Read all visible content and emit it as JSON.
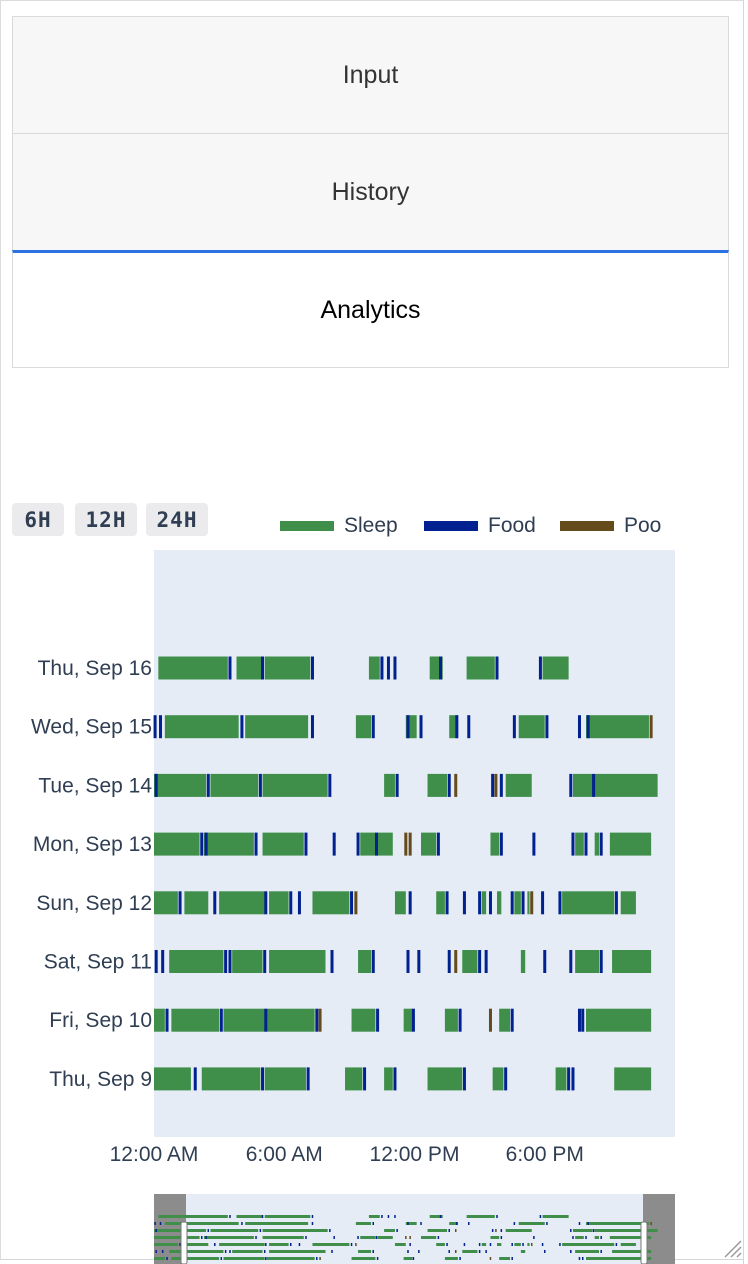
{
  "tabs": [
    {
      "label": "Input",
      "active": false
    },
    {
      "label": "History",
      "active": false
    },
    {
      "label": "Analytics",
      "active": true
    }
  ],
  "range_buttons": [
    "6H",
    "12H",
    "24H"
  ],
  "colors": {
    "sleep": "#3f8f4b",
    "food": "#00218f",
    "poo": "#654a1c",
    "plot_bg": "#e5ecf6",
    "tab_accent": "#2a72e0"
  },
  "chart_data": {
    "type": "timeline",
    "legend": [
      {
        "name": "Sleep",
        "color": "#3f8f4b"
      },
      {
        "name": "Food",
        "color": "#00218f"
      },
      {
        "name": "Poo",
        "color": "#654a1c"
      }
    ],
    "x_ticks": [
      "12:00 AM",
      "6:00 AM",
      "12:00 PM",
      "6:00 PM"
    ],
    "x_tick_hours": [
      0,
      6,
      12,
      18
    ],
    "xlim_hours": [
      0,
      24
    ],
    "days": [
      "Thu, Sep 16",
      "Wed, Sep 15",
      "Tue, Sep 14",
      "Mon, Sep 13",
      "Sun, Sep 12",
      "Sat, Sep 11",
      "Fri, Sep 10",
      "Thu, Sep 9"
    ],
    "rows": [
      {
        "day": "Thu, Sep 16",
        "sleep": [
          [
            0.2,
            3.4
          ],
          [
            3.8,
            5.0
          ],
          [
            5.1,
            7.2
          ],
          [
            9.9,
            10.4
          ],
          [
            12.7,
            13.3
          ],
          [
            14.4,
            15.7
          ],
          [
            17.9,
            19.1
          ]
        ],
        "food": [
          3.5,
          5.0,
          7.3,
          10.5,
          10.8,
          11.1,
          13.2,
          15.8,
          17.8
        ],
        "poo": []
      },
      {
        "day": "Wed, Sep 15",
        "sleep": [
          [
            0.5,
            3.9
          ],
          [
            4.2,
            7.1
          ],
          [
            9.3,
            10.0
          ],
          [
            11.6,
            12.1
          ],
          [
            13.6,
            14.0
          ],
          [
            16.8,
            18.0
          ],
          [
            19.9,
            22.8
          ]
        ],
        "food": [
          0.05,
          0.3,
          4.05,
          7.3,
          10.1,
          11.7,
          12.3,
          13.95,
          14.5,
          16.6,
          18.1,
          19.6,
          20.0
        ],
        "poo": [
          22.9
        ]
      },
      {
        "day": "Tue, Sep 14",
        "sleep": [
          [
            0.0,
            2.4
          ],
          [
            2.6,
            4.8
          ],
          [
            5.0,
            8.0
          ],
          [
            10.6,
            11.1
          ],
          [
            12.6,
            13.5
          ],
          [
            16.2,
            17.4
          ],
          [
            19.3,
            20.2
          ],
          [
            20.3,
            23.2
          ]
        ],
        "food": [
          0.1,
          2.5,
          4.9,
          8.1,
          11.2,
          13.6,
          15.6,
          16.0,
          19.2,
          20.25
        ],
        "poo": [
          13.9,
          15.75
        ]
      },
      {
        "day": "Mon, Sep 13",
        "sleep": [
          [
            0.0,
            2.1
          ],
          [
            2.3,
            4.6
          ],
          [
            5.0,
            6.9
          ],
          [
            9.5,
            10.2
          ],
          [
            10.3,
            11.0
          ],
          [
            12.3,
            13.0
          ],
          [
            15.5,
            15.9
          ],
          [
            19.4,
            19.8
          ],
          [
            20.3,
            20.5
          ],
          [
            21.0,
            22.9
          ]
        ],
        "food": [
          2.2,
          2.4,
          4.7,
          7.0,
          8.3,
          9.4,
          10.25,
          13.1,
          16.0,
          17.5,
          19.3,
          19.9,
          20.6
        ],
        "poo": [
          11.6,
          11.8
        ]
      },
      {
        "day": "Sun, Sep 12",
        "sleep": [
          [
            0.0,
            1.1
          ],
          [
            1.4,
            2.5
          ],
          [
            3.0,
            5.1
          ],
          [
            5.3,
            6.2
          ],
          [
            7.3,
            9.0
          ],
          [
            11.1,
            11.6
          ],
          [
            13.0,
            13.4
          ],
          [
            15.1,
            15.3
          ],
          [
            15.8,
            16.0
          ],
          [
            16.6,
            16.9
          ],
          [
            17.2,
            17.3
          ],
          [
            18.8,
            21.2
          ],
          [
            21.5,
            22.2
          ]
        ],
        "food": [
          1.2,
          2.8,
          5.15,
          6.3,
          6.7,
          9.1,
          11.8,
          13.5,
          14.3,
          15.0,
          15.5,
          16.5,
          17.0,
          17.9,
          18.7,
          21.3
        ],
        "poo": [
          9.3,
          17.4
        ]
      },
      {
        "day": "Sat, Sep 11",
        "sleep": [
          [
            0.7,
            3.2
          ],
          [
            3.6,
            5.0
          ],
          [
            5.3,
            7.9
          ],
          [
            9.4,
            10.0
          ],
          [
            14.2,
            14.9
          ],
          [
            16.9,
            17.1
          ],
          [
            19.4,
            20.5
          ],
          [
            21.1,
            22.9
          ]
        ],
        "food": [
          0.1,
          0.4,
          3.3,
          3.5,
          5.1,
          8.2,
          10.1,
          11.7,
          12.2,
          13.6,
          15.0,
          15.3,
          18.0,
          19.2,
          20.6
        ],
        "poo": [
          13.9
        ]
      },
      {
        "day": "Fri, Sep 10",
        "sleep": [
          [
            0.0,
            0.5
          ],
          [
            0.8,
            3.0
          ],
          [
            3.2,
            5.1
          ],
          [
            5.2,
            7.4
          ],
          [
            9.1,
            10.2
          ],
          [
            11.5,
            11.9
          ],
          [
            13.4,
            14.0
          ],
          [
            15.9,
            16.4
          ],
          [
            19.9,
            22.9
          ]
        ],
        "food": [
          0.6,
          3.1,
          5.15,
          7.5,
          10.3,
          11.95,
          14.1,
          16.5,
          19.6,
          19.75
        ],
        "poo": [
          7.65,
          15.5
        ]
      },
      {
        "day": "Thu, Sep 9",
        "sleep": [
          [
            0.0,
            1.7
          ],
          [
            2.2,
            4.9
          ],
          [
            5.1,
            7.0
          ],
          [
            8.8,
            9.6
          ],
          [
            10.6,
            11.0
          ],
          [
            12.6,
            14.2
          ],
          [
            15.6,
            16.1
          ],
          [
            18.5,
            19.0
          ],
          [
            21.2,
            22.9
          ]
        ],
        "food": [
          1.9,
          5.0,
          7.1,
          9.7,
          11.1,
          14.3,
          16.2,
          19.1,
          19.3
        ],
        "poo": []
      }
    ]
  }
}
